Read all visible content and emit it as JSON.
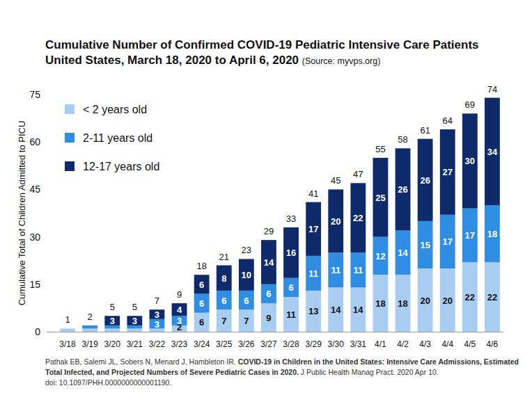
{
  "chart_data": {
    "type": "bar",
    "title": "Cumulative Number of Confirmed COVID-19 Pediatric Intensive Care Patients",
    "subtitle": "United States, March 18, 2020 to April 6, 2020",
    "annotations": [
      "(Source: myvps.org)",
      "Pathak EB, Salemi JL, Sobers N, Menard J, Hambleton IR.",
      "COVID-19 in Children in the United States: Intensive Care Admissions, Estimated",
      "Total Infected, and Projected Numbers of Severe Pediatric Cases in 2020.",
      "J Public Health Manag Pract. 2020 Apr 10.",
      "doi: 10.1097/PHH.0000000000001190."
    ],
    "y_label": "Cumulative Total of Children Admitted to PICU",
    "categories": [
      "3/18",
      "3/19",
      "3/20",
      "3/21",
      "3/22",
      "3/23",
      "3/24",
      "3/25",
      "3/26",
      "3/27",
      "3/28",
      "3/29",
      "3/30",
      "3/31",
      "4/1",
      "4/2",
      "4/3",
      "4/4",
      "4/5",
      "4/6"
    ],
    "series": [
      {
        "name": "< 2 years old",
        "color": "#a8cdf1",
        "values": [
          1,
          1,
          1,
          1,
          1,
          2,
          6,
          7,
          7,
          9,
          11,
          13,
          14,
          14,
          18,
          18,
          20,
          20,
          22,
          22
        ]
      },
      {
        "name": "2-11 years old",
        "color": "#2f8de4",
        "values": [
          0,
          1,
          1,
          1,
          3,
          3,
          6,
          6,
          6,
          6,
          6,
          11,
          11,
          11,
          12,
          14,
          15,
          17,
          17,
          18
        ]
      },
      {
        "name": "12-17 years old",
        "color": "#0f2a6a",
        "values": [
          0,
          0,
          3,
          3,
          3,
          4,
          6,
          8,
          10,
          14,
          16,
          17,
          20,
          22,
          25,
          26,
          26,
          27,
          30,
          34
        ]
      }
    ],
    "totals": [
      1,
      2,
      5,
      5,
      7,
      9,
      18,
      21,
      23,
      29,
      33,
      41,
      45,
      47,
      55,
      58,
      61,
      64,
      69,
      74
    ],
    "ylim": [
      0,
      75
    ],
    "yticks": [
      0,
      15,
      30,
      45,
      60,
      75
    ],
    "stacked": true,
    "data_labels": true,
    "grid": false,
    "legend": "upper left"
  }
}
